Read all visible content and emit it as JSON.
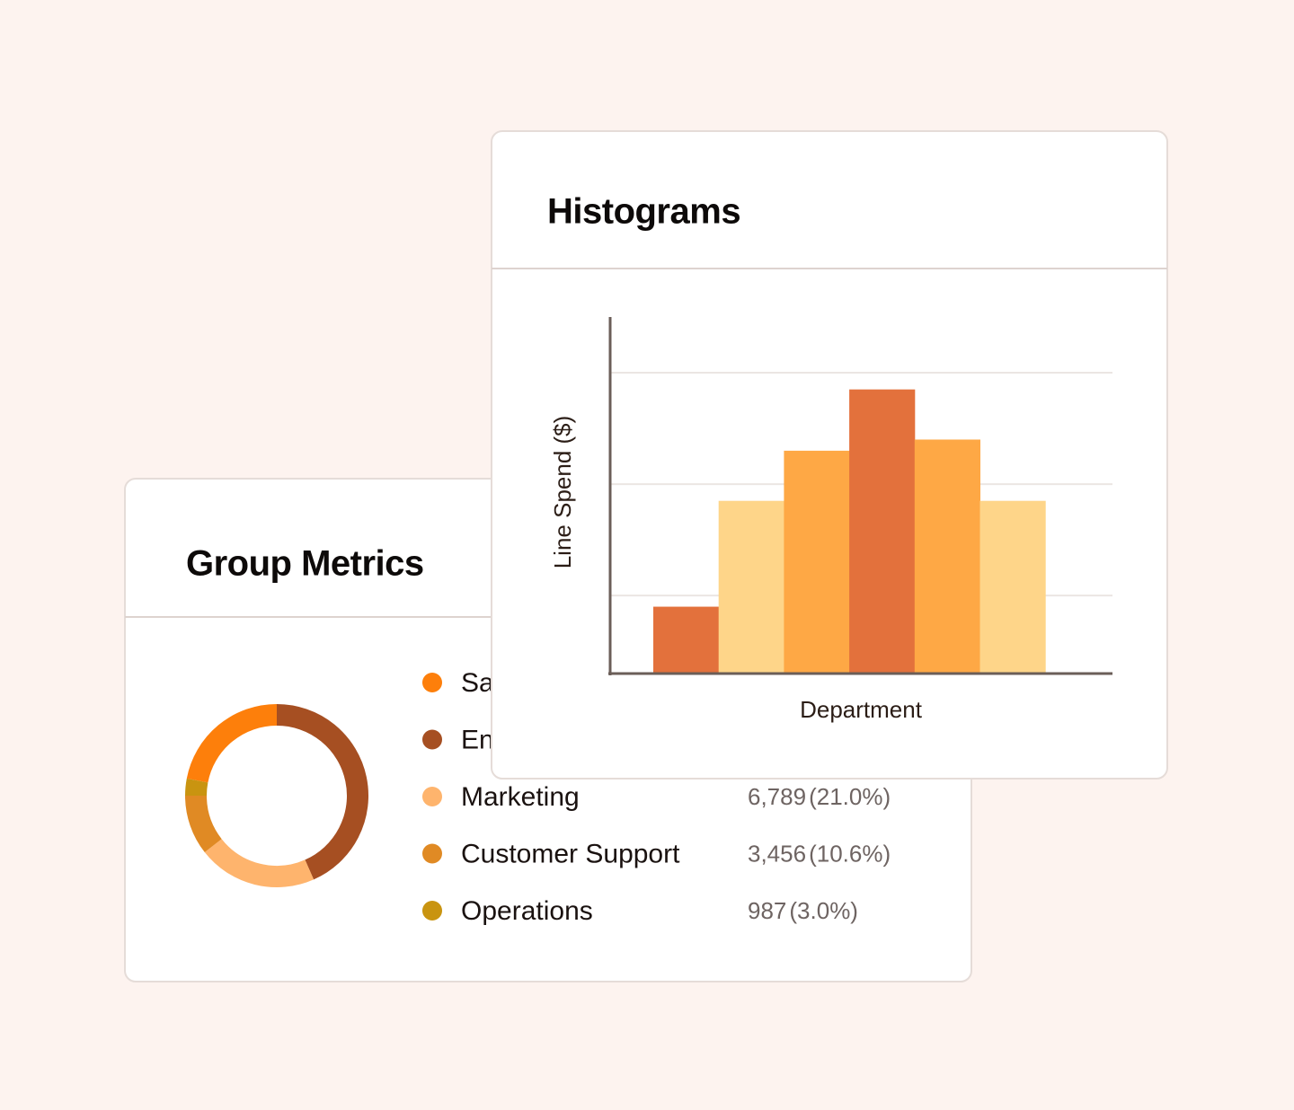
{
  "chart_data": [
    {
      "type": "bar",
      "title": "Histograms",
      "y_label": "Line Spend ($)",
      "x_label": "Department",
      "values": [
        0.6,
        1.55,
        2.0,
        2.55,
        2.1,
        1.55
      ],
      "colors": [
        "#e3713c",
        "#fed589",
        "#fea845",
        "#e3713c",
        "#fea845",
        "#fed589"
      ],
      "ylim": [
        0,
        3.2
      ],
      "yticks": [
        0.7,
        1.7,
        2.7
      ],
      "grid": true
    },
    {
      "type": "pie",
      "title": "Group Metrics",
      "categories": [
        "Sa",
        "En",
        "Marketing",
        "Customer Support",
        "Operations"
      ],
      "colors": [
        "#fd7f0b",
        "#a64f22",
        "#feb46d",
        "#e08a24",
        "#c99410"
      ],
      "values": [
        22.0,
        43.4,
        21.0,
        10.6,
        3.0
      ],
      "value_labels": [
        null,
        null,
        "(21.0%)",
        "(10.6%)",
        "(3.0%)"
      ],
      "counts": [
        null,
        null,
        6789,
        3456,
        987
      ],
      "count_labels": [
        null,
        null,
        "6,789",
        "3,456",
        "987"
      ]
    }
  ]
}
